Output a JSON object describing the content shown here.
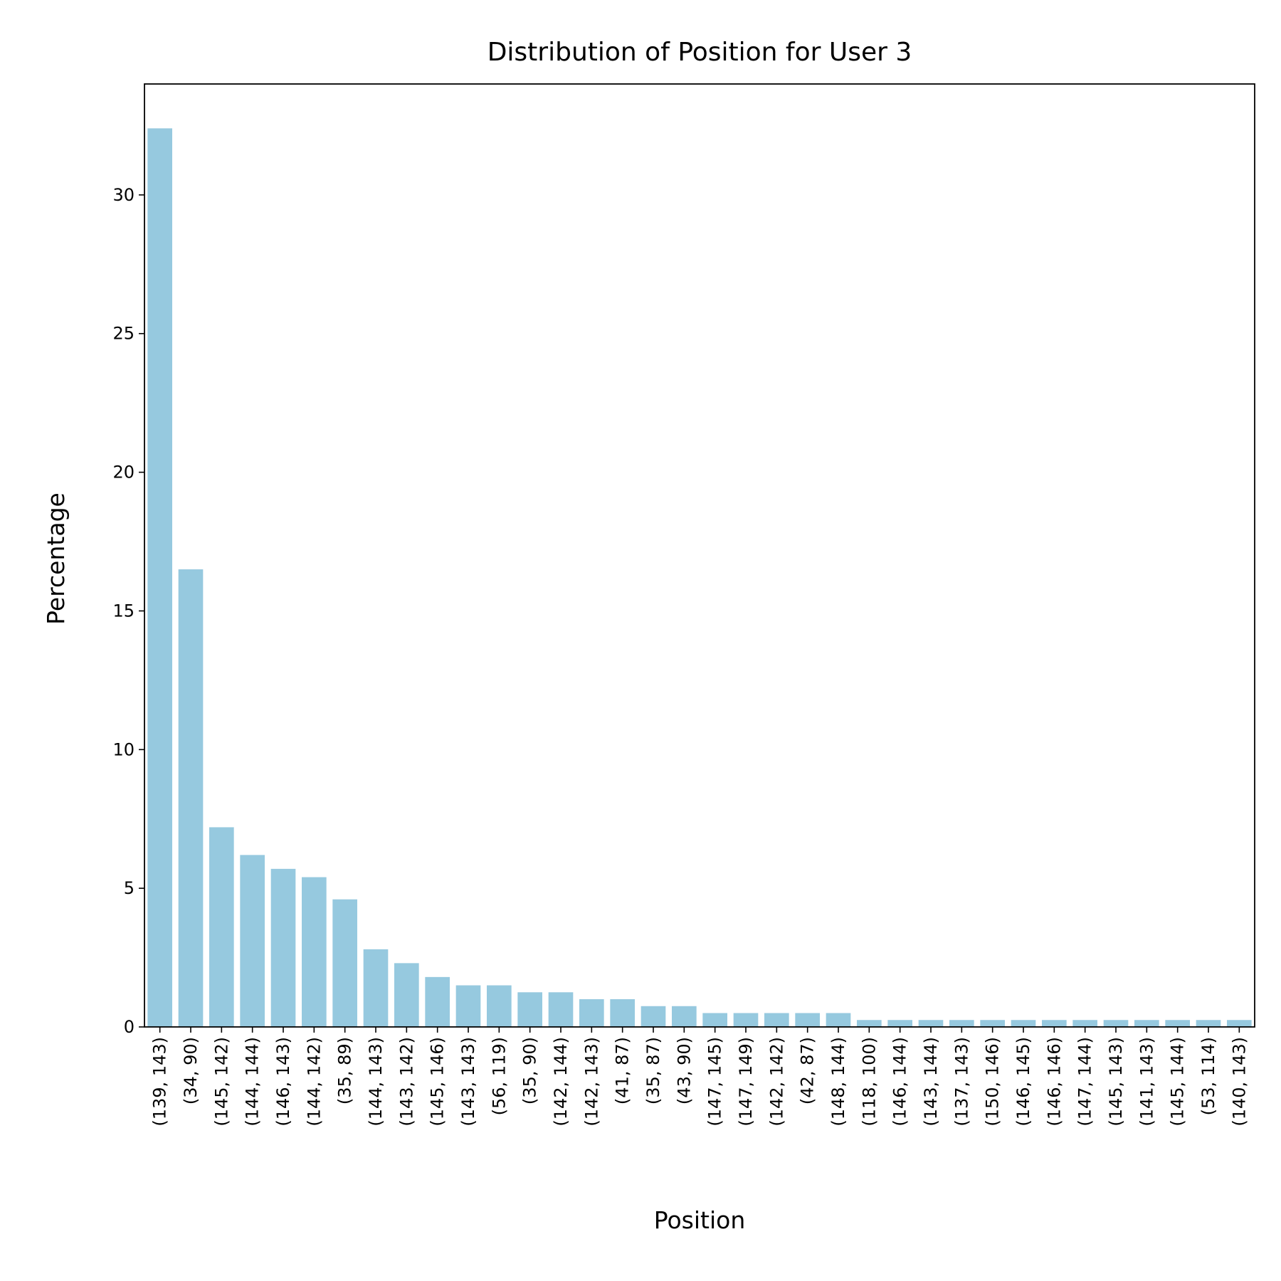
{
  "chart_data": {
    "type": "bar",
    "title": "Distribution of Position for User 3",
    "xlabel": "Position",
    "ylabel": "Percentage",
    "ylim": [
      0,
      34
    ],
    "yticks": [
      0,
      5,
      10,
      15,
      20,
      25,
      30
    ],
    "grid": false,
    "bar_color": "#96c9df",
    "categories": [
      "(139, 143)",
      "(34, 90)",
      "(145, 142)",
      "(144, 144)",
      "(146, 143)",
      "(144, 142)",
      "(35, 89)",
      "(144, 143)",
      "(143, 142)",
      "(145, 146)",
      "(143, 143)",
      "(56, 119)",
      "(35, 90)",
      "(142, 144)",
      "(142, 143)",
      "(41, 87)",
      "(35, 87)",
      "(43, 90)",
      "(147, 145)",
      "(147, 149)",
      "(142, 142)",
      "(42, 87)",
      "(148, 144)",
      "(118, 100)",
      "(146, 144)",
      "(143, 144)",
      "(137, 143)",
      "(150, 146)",
      "(146, 145)",
      "(146, 146)",
      "(147, 144)",
      "(145, 143)",
      "(141, 143)",
      "(145, 144)",
      "(53, 114)",
      "(140, 143)"
    ],
    "values": [
      32.4,
      16.5,
      7.2,
      6.2,
      5.7,
      5.4,
      4.6,
      2.8,
      2.3,
      1.8,
      1.5,
      1.5,
      1.25,
      1.25,
      1.0,
      1.0,
      0.75,
      0.75,
      0.5,
      0.5,
      0.5,
      0.5,
      0.5,
      0.25,
      0.25,
      0.25,
      0.25,
      0.25,
      0.25,
      0.25,
      0.25,
      0.25,
      0.25,
      0.25,
      0.25,
      0.25
    ]
  }
}
